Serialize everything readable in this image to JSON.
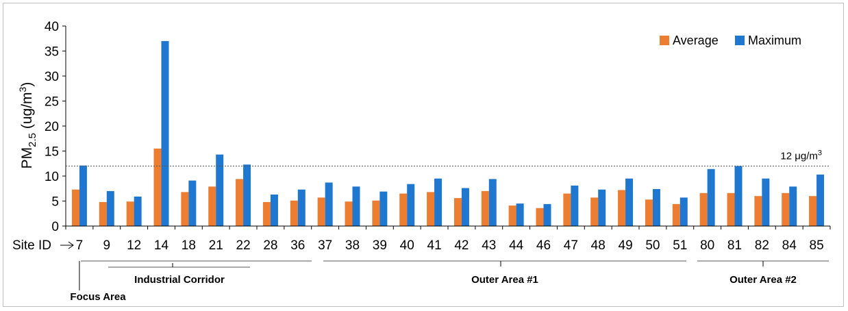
{
  "chart_data": {
    "type": "bar",
    "ylabel": {
      "main": "PM",
      "sub": "2.5",
      "unit": " (ug/m",
      "sup": "3",
      "close": ")"
    },
    "ylim": [
      0,
      40
    ],
    "yticks": [
      0,
      5,
      10,
      15,
      20,
      25,
      30,
      35,
      40
    ],
    "xaxis_prefix": "Site ID",
    "categories": [
      "7",
      "9",
      "12",
      "14",
      "18",
      "21",
      "22",
      "28",
      "36",
      "37",
      "38",
      "39",
      "40",
      "41",
      "42",
      "43",
      "44",
      "46",
      "47",
      "48",
      "49",
      "50",
      "51",
      "80",
      "81",
      "82",
      "84",
      "85"
    ],
    "series": [
      {
        "name": "Average",
        "color": "#ED7D31",
        "values": [
          7.3,
          4.8,
          4.9,
          15.5,
          6.8,
          7.9,
          9.4,
          4.8,
          5.1,
          5.7,
          4.9,
          5.1,
          6.5,
          6.8,
          5.6,
          7.0,
          4.1,
          3.6,
          6.5,
          5.7,
          7.2,
          5.3,
          4.4,
          6.6,
          6.6,
          6.0,
          6.6,
          6.0
        ]
      },
      {
        "name": "Maximum",
        "color": "#1F77D0",
        "values": [
          12.1,
          7.0,
          5.9,
          37.0,
          9.1,
          14.3,
          12.3,
          6.3,
          7.3,
          8.7,
          7.9,
          6.9,
          8.4,
          9.5,
          7.6,
          9.4,
          4.5,
          4.4,
          8.1,
          7.3,
          9.5,
          7.4,
          5.7,
          11.4,
          12.0,
          9.5,
          7.9,
          10.3
        ]
      }
    ],
    "reference_line": {
      "value": 12,
      "label_pre": "12 ",
      "label_mu": "μg/m",
      "label_sup": "3"
    },
    "legend_position": "top-right",
    "grid": false,
    "groups": [
      {
        "label": "Focus Area",
        "start": "7",
        "end": "7"
      },
      {
        "label": "Industrial Corridor",
        "start": "9",
        "end": "28"
      },
      {
        "label": "Outer Area #1",
        "start": "36",
        "end": "51"
      },
      {
        "label": "Outer Area #2",
        "start": "80",
        "end": "85"
      }
    ]
  }
}
